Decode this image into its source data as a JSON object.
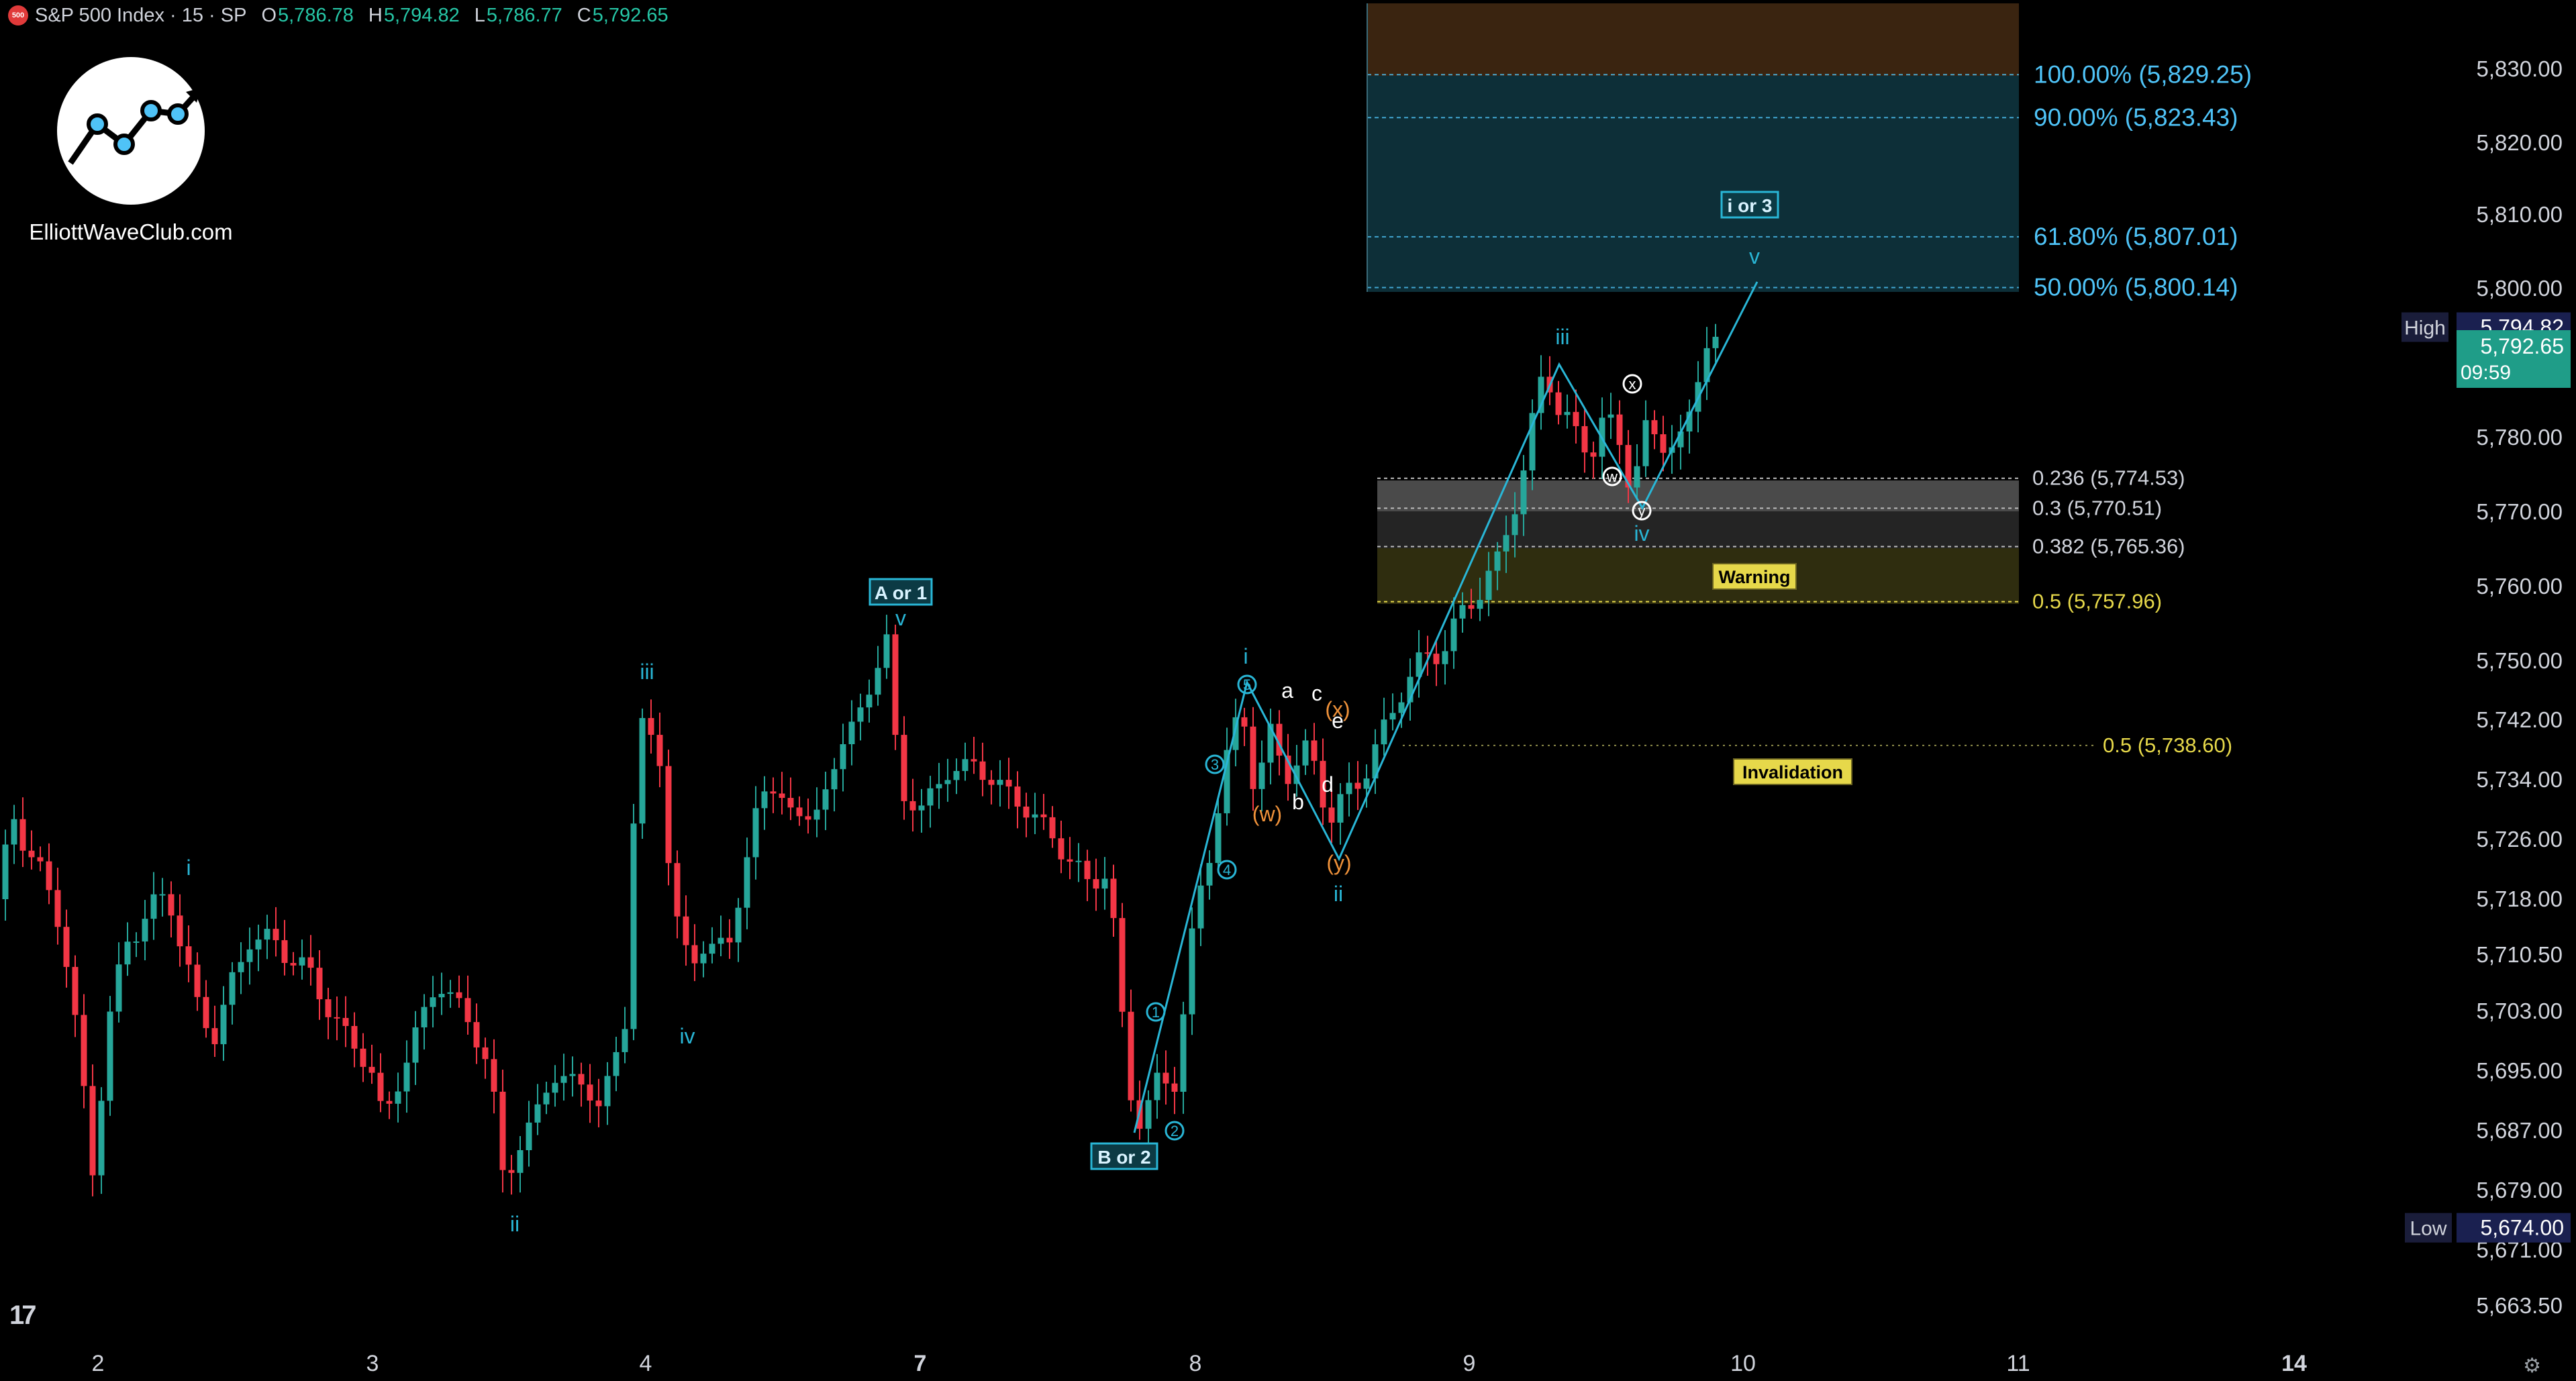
{
  "header": {
    "badge": "500",
    "symbol": "S&P 500 Index · 15 · SP",
    "open_label": "O",
    "open": "5,786.78",
    "high_label": "H",
    "high": "5,794.82",
    "low_label": "L",
    "low": "5,786.77",
    "close_label": "C",
    "close": "5,792.65"
  },
  "logo": {
    "text": "ElliottWaveClub.com"
  },
  "colors": {
    "up": "#26a69a",
    "down": "#f23645",
    "wave": "#29b6d6",
    "fib_blue": "#4fc3f7",
    "fib_yellow": "#e6d84a"
  },
  "price_axis": {
    "labels": [
      "5,830.00",
      "5,820.00",
      "5,810.00",
      "5,800.00",
      "5,780.00",
      "5,770.00",
      "5,760.00",
      "5,750.00",
      "5,742.00",
      "5,734.00",
      "5,726.00",
      "5,718.00",
      "5,710.50",
      "5,703.00",
      "5,695.00",
      "5,687.00",
      "5,679.00",
      "5,671.00",
      "5,663.50"
    ],
    "values": [
      5830,
      5820,
      5810,
      5800,
      5780,
      5770,
      5760,
      5750,
      5742,
      5734,
      5726,
      5718,
      5710.5,
      5703,
      5695,
      5687,
      5679,
      5671,
      5663.5
    ],
    "high_label": "High",
    "high_value": "5,794.82",
    "last_value": "5,792.65",
    "countdown": "09:59",
    "low_label": "Low",
    "low_value": "5,674.00"
  },
  "time_axis": {
    "labels": [
      "2",
      "3",
      "4",
      "7",
      "8",
      "9",
      "10",
      "11",
      "14"
    ],
    "bold": [
      false,
      false,
      false,
      true,
      false,
      false,
      false,
      false,
      true
    ]
  },
  "fib_extension": [
    {
      "label": "100.00% (5,829.25)",
      "price": 5829.25
    },
    {
      "label": "90.00% (5,823.43)",
      "price": 5823.43
    },
    {
      "label": "61.80% (5,807.01)",
      "price": 5807.01
    },
    {
      "label": "50.00% (5,800.14)",
      "price": 5800.14
    }
  ],
  "fib_retracement": [
    {
      "label": "0.236 (5,774.53)",
      "price": 5774.53
    },
    {
      "label": "0.3 (5,770.51)",
      "price": 5770.51
    },
    {
      "label": "0.382 (5,765.36)",
      "price": 5765.36
    },
    {
      "label": "0.5 (5,757.96)",
      "price": 5757.96
    }
  ],
  "invalidation_level": {
    "label": "0.5 (5,738.60)",
    "price": 5738.6
  },
  "boxes": {
    "warning": "Warning",
    "invalidation": "Invalidation"
  },
  "wave_labels": {
    "a_or_1": "A or 1",
    "b_or_2": "B or 2",
    "i_or_3": "i or 3",
    "i": "i",
    "ii": "ii",
    "iii": "iii",
    "iv": "iv",
    "v": "v",
    "a": "a",
    "b": "b",
    "c": "c",
    "d": "d",
    "e": "e",
    "w_paren": "(w)",
    "x_paren": "(x)",
    "y_paren": "(y)",
    "c1": "1",
    "c2": "2",
    "c3": "3",
    "c4": "4",
    "c5": "5",
    "cw": "w",
    "cx": "x",
    "cy": "y"
  }
}
